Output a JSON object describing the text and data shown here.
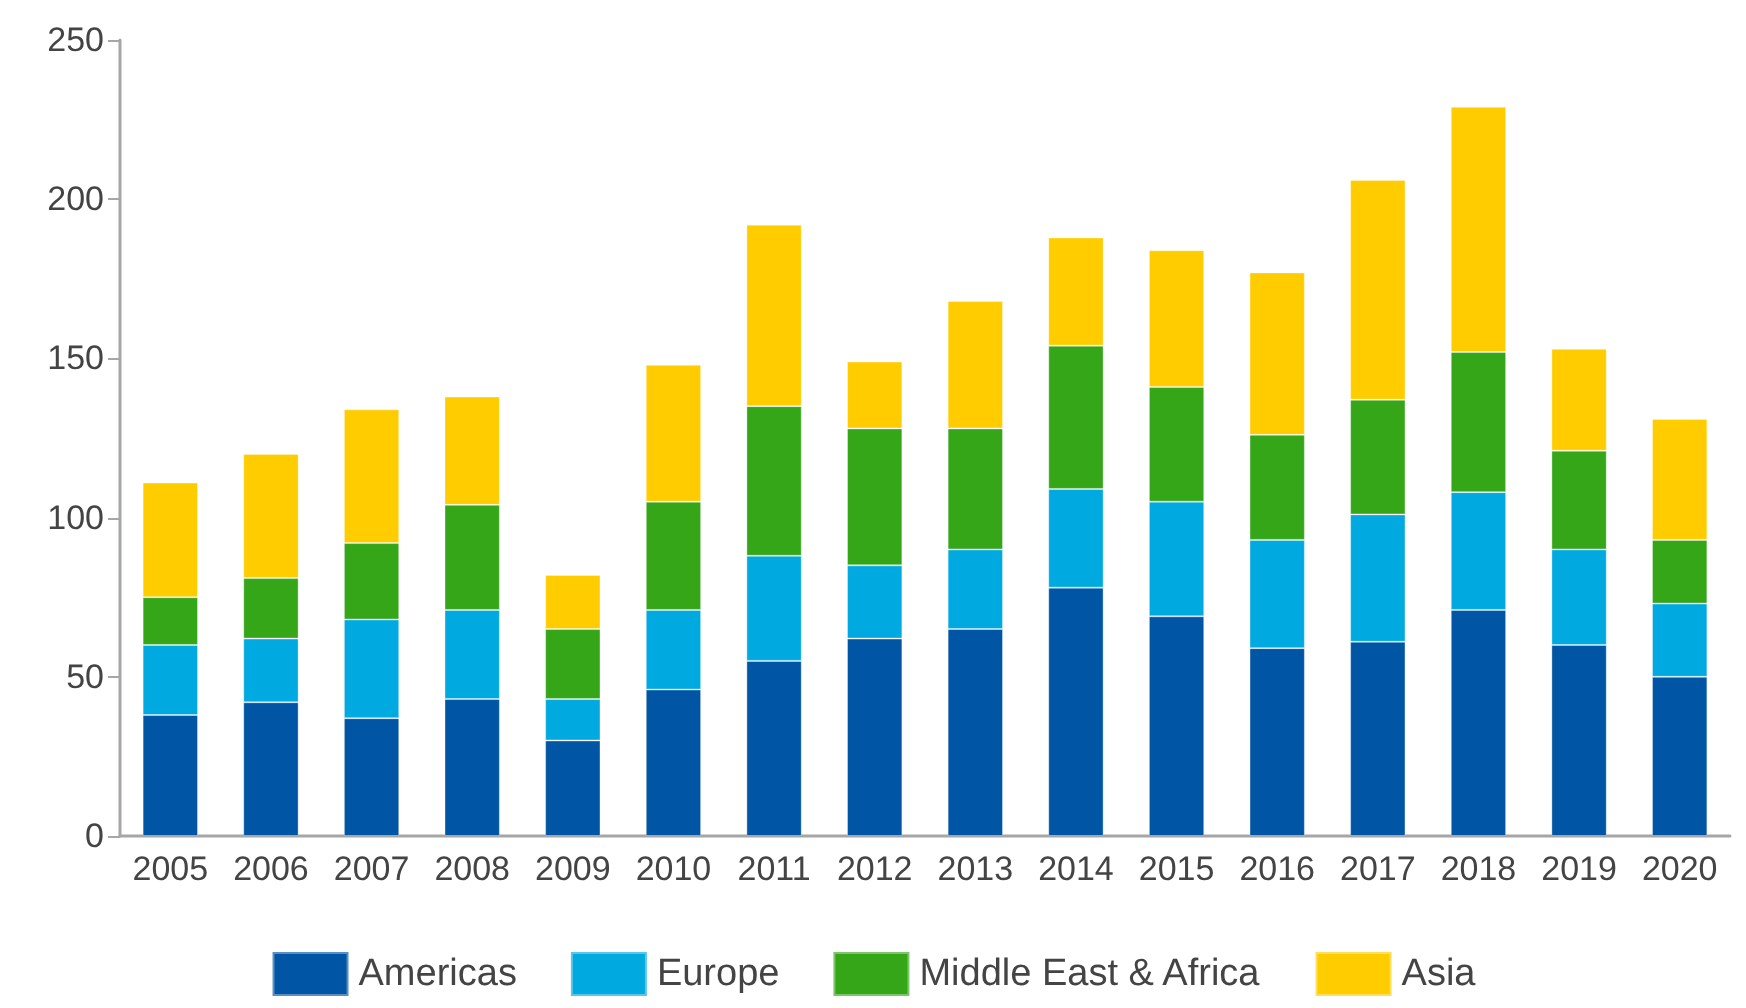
{
  "chart_data": {
    "type": "bar",
    "stacked": true,
    "categories": [
      "2005",
      "2006",
      "2007",
      "2008",
      "2009",
      "2010",
      "2011",
      "2012",
      "2013",
      "2014",
      "2015",
      "2016",
      "2017",
      "2018",
      "2019",
      "2020"
    ],
    "series": [
      {
        "name": "Americas",
        "color": "#0055a4",
        "values": [
          38,
          42,
          37,
          43,
          30,
          46,
          55,
          62,
          65,
          78,
          69,
          59,
          61,
          71,
          60,
          50
        ]
      },
      {
        "name": "Europe",
        "color": "#00a9e0",
        "values": [
          22,
          20,
          31,
          28,
          13,
          25,
          33,
          23,
          25,
          31,
          36,
          34,
          40,
          37,
          30,
          23
        ]
      },
      {
        "name": "Middle East & Africa",
        "color": "#36a619",
        "values": [
          15,
          19,
          24,
          33,
          22,
          34,
          47,
          43,
          38,
          45,
          36,
          33,
          36,
          44,
          31,
          20
        ]
      },
      {
        "name": "Asia",
        "color": "#ffcc00",
        "values": [
          36,
          39,
          42,
          34,
          17,
          43,
          57,
          21,
          40,
          34,
          43,
          51,
          69,
          77,
          32,
          38
        ]
      }
    ],
    "ylim": [
      0,
      250
    ],
    "yticks": [
      0,
      50,
      100,
      150,
      200,
      250
    ],
    "grid": false,
    "legend": "bottom"
  }
}
